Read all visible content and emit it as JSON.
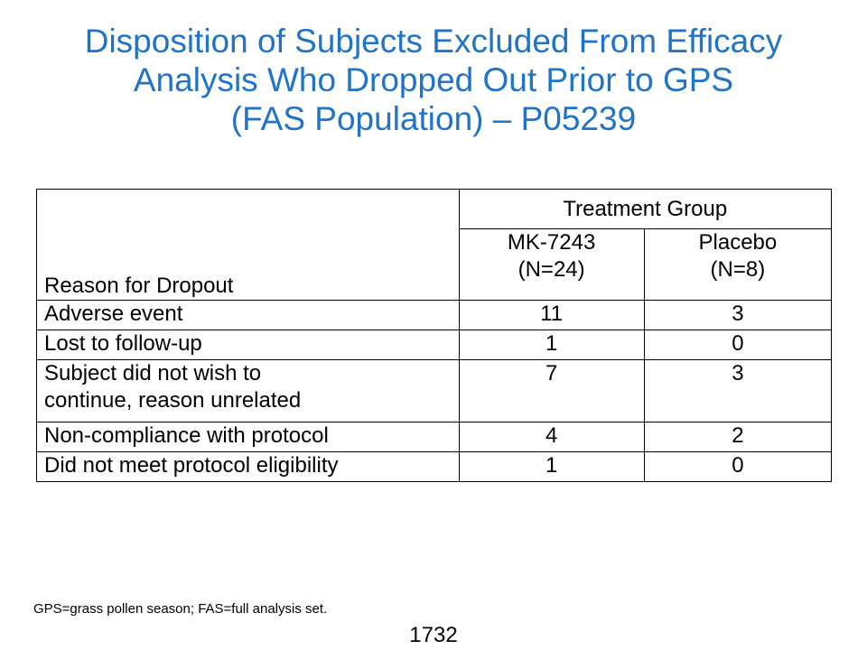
{
  "title": {
    "lines": [
      "Disposition of Subjects Excluded From Efficacy",
      "Analysis Who Dropped Out Prior to GPS",
      "(FAS Population) – P05239"
    ]
  },
  "table": {
    "reason_header": "Reason for Dropout",
    "group_header": "Treatment Group",
    "arms": [
      {
        "name": "MK-7243",
        "n": "(N=24)"
      },
      {
        "name": "Placebo",
        "n": "(N=8)"
      }
    ],
    "rows": [
      {
        "reason": [
          "Adverse event"
        ],
        "values": [
          "11",
          "3"
        ]
      },
      {
        "reason": [
          "Lost to follow-up"
        ],
        "values": [
          "1",
          "0"
        ]
      },
      {
        "reason": [
          "Subject did not wish to",
          "continue, reason unrelated"
        ],
        "values": [
          "7",
          "3"
        ]
      },
      {
        "reason": [
          "Non-compliance with protocol"
        ],
        "values": [
          "4",
          "2"
        ]
      },
      {
        "reason": [
          "Did not meet protocol eligibility"
        ],
        "values": [
          "1",
          "0"
        ]
      }
    ]
  },
  "footnote": "GPS=grass pollen season; FAS=full analysis set.",
  "page_number": "1732",
  "colors": {
    "title": "#1f73c8",
    "text": "#000000",
    "border": "#000000",
    "background": "#ffffff"
  }
}
